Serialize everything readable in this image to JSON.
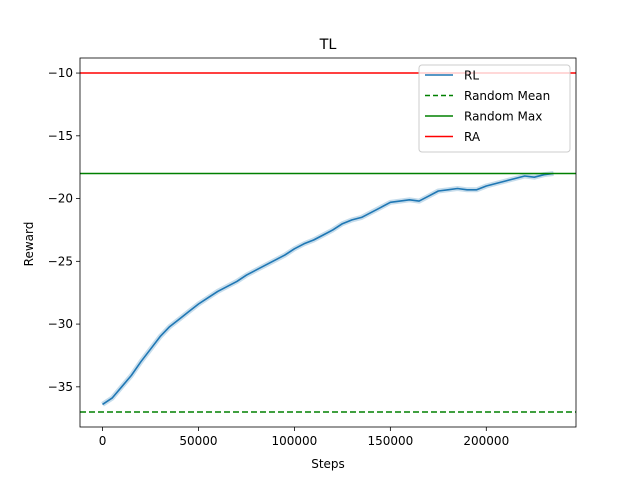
{
  "chart_data": {
    "type": "line",
    "title": "TL",
    "xlabel": "Steps",
    "ylabel": "Reward",
    "xlim": [
      -11750,
      246750
    ],
    "ylim": [
      -38.2,
      -8.8
    ],
    "xticks": [
      0,
      50000,
      100000,
      150000,
      200000
    ],
    "yticks": [
      -35,
      -30,
      -25,
      -20,
      -15,
      -10
    ],
    "legend_placement": "top-right",
    "grid": false,
    "series": [
      {
        "name": "RL",
        "color": "#1f77b4",
        "style": "solid",
        "x": [
          0,
          5000,
          10000,
          15000,
          20000,
          25000,
          30000,
          35000,
          40000,
          45000,
          50000,
          55000,
          60000,
          65000,
          70000,
          75000,
          80000,
          85000,
          90000,
          95000,
          100000,
          105000,
          110000,
          115000,
          120000,
          125000,
          130000,
          135000,
          140000,
          145000,
          150000,
          155000,
          160000,
          165000,
          170000,
          175000,
          180000,
          185000,
          190000,
          195000,
          200000,
          205000,
          210000,
          215000,
          220000,
          225000,
          230000,
          235000
        ],
        "y": [
          -36.4,
          -35.9,
          -35.0,
          -34.1,
          -33.0,
          -32.0,
          -31.0,
          -30.2,
          -29.6,
          -29.0,
          -28.4,
          -27.9,
          -27.4,
          -27.0,
          -26.6,
          -26.1,
          -25.7,
          -25.3,
          -24.9,
          -24.5,
          -24.0,
          -23.6,
          -23.3,
          -22.9,
          -22.5,
          -22.0,
          -21.7,
          -21.5,
          -21.1,
          -20.7,
          -20.3,
          -20.2,
          -20.1,
          -20.2,
          -19.8,
          -19.4,
          -19.3,
          -19.2,
          -19.3,
          -19.3,
          -19.0,
          -18.8,
          -18.6,
          -18.4,
          -18.2,
          -18.3,
          -18.1,
          -18.0
        ]
      },
      {
        "name": "Random Mean",
        "color": "#008000",
        "style": "dashed",
        "y_constant": -37.0
      },
      {
        "name": "Random Max",
        "color": "#008000",
        "style": "solid",
        "y_constant": -18.0
      },
      {
        "name": "RA",
        "color": "#ff0000",
        "style": "solid",
        "y_constant": -10.0
      }
    ]
  }
}
